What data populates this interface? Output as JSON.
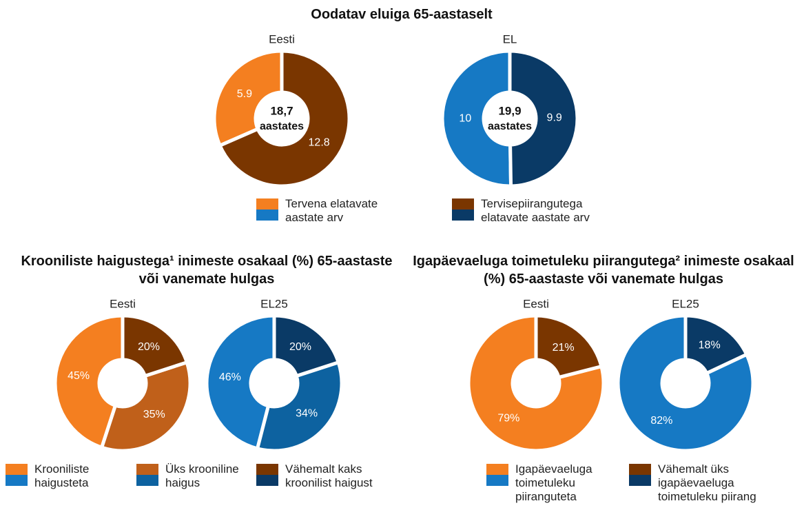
{
  "chart_data": [
    {
      "type": "donut",
      "title": "Oodatav eluiga 65-aastaselt",
      "categories": [
        "Tervena elatavate aastate arv",
        "Tervisepiirangutega elatavate aastate arv"
      ],
      "series": [
        {
          "name": "Eesti",
          "colors": [
            "#f47f20",
            "#7a3600"
          ],
          "values": [
            5.9,
            12.8
          ],
          "total": {
            "value": 18.7,
            "label": "18,7"
          },
          "total_unit": "aastates"
        },
        {
          "name": "EL",
          "colors": [
            "#1679c4",
            "#0a3a66"
          ],
          "values": [
            10,
            9.9
          ],
          "total": {
            "value": 19.9,
            "label": "19,9"
          },
          "total_unit": "aastates"
        }
      ]
    },
    {
      "type": "donut",
      "title": "Krooniliste haigustega¹  inimeste osakaal (%) 65-aastaste või vanemate hulgas",
      "categories": [
        "Krooniliste haigusteta",
        "Üks krooniline haigus",
        "Vähemalt kaks kroonilist haigust"
      ],
      "series": [
        {
          "name": "Eesti",
          "colors": [
            "#f47f20",
            "#c0601a",
            "#7a3600"
          ],
          "values": [
            45,
            35,
            20
          ],
          "value_labels": [
            "45%",
            "35%",
            "20%"
          ]
        },
        {
          "name": "EL25",
          "colors": [
            "#1679c4",
            "#0d62a0",
            "#0a3a66"
          ],
          "values": [
            46,
            34,
            20
          ],
          "value_labels": [
            "46%",
            "34%",
            "20%"
          ]
        }
      ]
    },
    {
      "type": "donut",
      "title": "Igapäevaeluga toimetuleku piirangutega²  inimeste osakaal (%)  65-aastaste või vanemate hulgas",
      "categories": [
        "Igapäevaeluga toimetuleku piiranguteta",
        "Vähemalt üks igapäevaeluga toimetuleku piirang"
      ],
      "series": [
        {
          "name": "Eesti",
          "colors": [
            "#f47f20",
            "#7a3600"
          ],
          "values": [
            79,
            21
          ],
          "value_labels": [
            "79%",
            "21%"
          ]
        },
        {
          "name": "EL25",
          "colors": [
            "#1679c4",
            "#0a3a66"
          ],
          "values": [
            82,
            18
          ],
          "value_labels": [
            "82%",
            "18%"
          ]
        }
      ]
    }
  ]
}
